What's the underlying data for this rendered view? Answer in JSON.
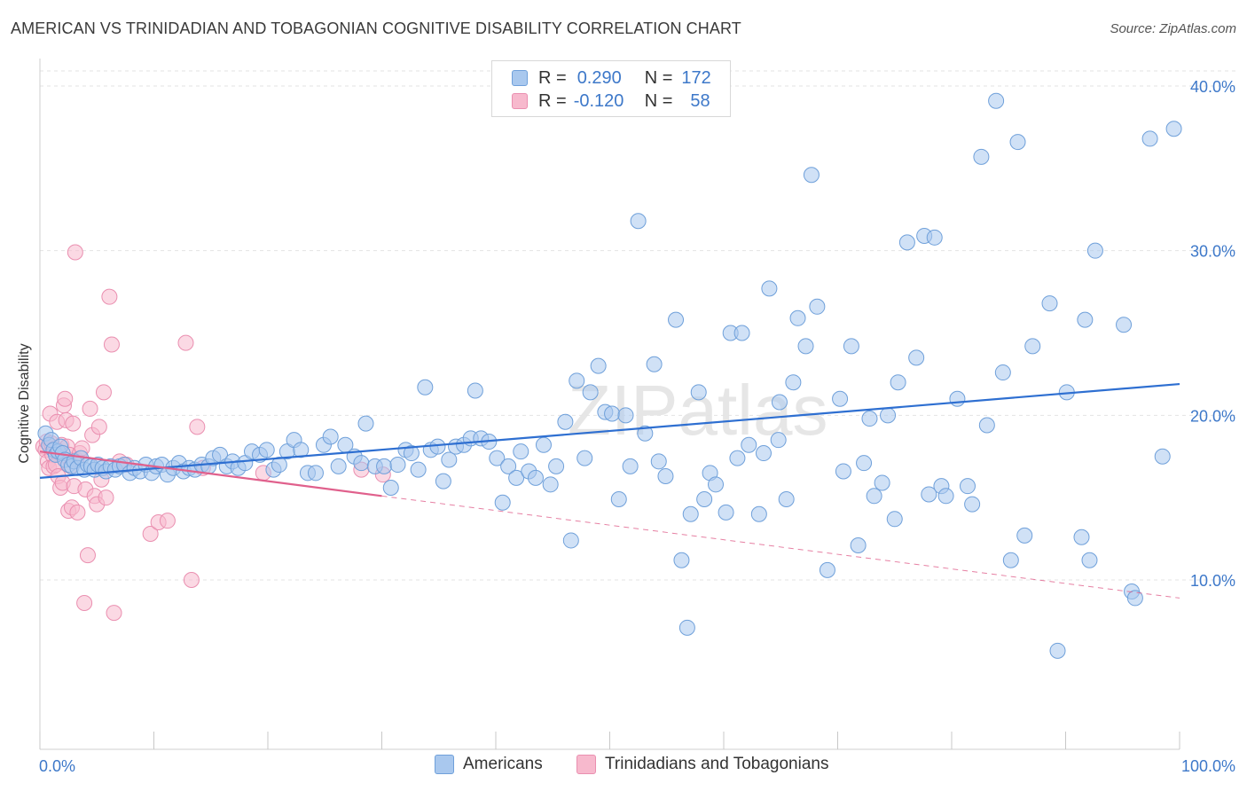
{
  "title": "AMERICAN VS TRINIDADIAN AND TOBAGONIAN COGNITIVE DISABILITY CORRELATION CHART",
  "source": "Source: ZipAtlas.com",
  "watermark": "ZIPatlas",
  "legend": {
    "row1": {
      "r_label": "R =",
      "r_value": "0.290",
      "n_label": "N =",
      "n_value": "172"
    },
    "row2": {
      "r_label": "R =",
      "r_value": "-0.120",
      "n_label": "N =",
      "n_value": "58"
    }
  },
  "colors": {
    "blue_fill": "#a9c8ee",
    "blue_stroke": "#6fa0da",
    "blue_line": "#2e6fd1",
    "pink_fill": "#f7b9cd",
    "pink_stroke": "#ea8fb0",
    "pink_line": "#e0608c",
    "label_blue": "#3d78c9",
    "grid": "#e3e3e3"
  },
  "chart_data": {
    "type": "scatter",
    "title": "AMERICAN VS TRINIDADIAN AND TOBAGONIAN COGNITIVE DISABILITY CORRELATION CHART",
    "xlabel": "",
    "ylabel": "Cognitive Disability",
    "xlim": [
      0,
      100
    ],
    "ylim": [
      0,
      42
    ],
    "x_tick_labels": [
      "0.0%",
      "100.0%"
    ],
    "y_ticks": [
      10,
      20,
      30,
      40
    ],
    "y_tick_labels": [
      "10.0%",
      "20.0%",
      "30.0%",
      "40.0%"
    ],
    "grid": true,
    "legend_position": "top-center",
    "series": [
      {
        "name": "Americans",
        "r": 0.29,
        "n": 172,
        "trend": {
          "x": [
            0,
            100
          ],
          "y": [
            16.2,
            21.9
          ]
        },
        "points": [
          [
            0.5,
            18.9
          ],
          [
            0.8,
            18.2
          ],
          [
            1.0,
            18.5
          ],
          [
            1.2,
            17.9
          ],
          [
            1.4,
            17.6
          ],
          [
            1.6,
            17.8
          ],
          [
            1.8,
            18.1
          ],
          [
            2.0,
            17.7
          ],
          [
            2.2,
            17.3
          ],
          [
            2.5,
            17.0
          ],
          [
            2.8,
            16.9
          ],
          [
            3.0,
            17.2
          ],
          [
            3.3,
            16.8
          ],
          [
            3.6,
            17.4
          ],
          [
            3.9,
            16.7
          ],
          [
            4.2,
            17.0
          ],
          [
            4.5,
            16.9
          ],
          [
            4.8,
            16.7
          ],
          [
            5.1,
            17.0
          ],
          [
            5.5,
            16.8
          ],
          [
            5.8,
            16.6
          ],
          [
            6.2,
            16.9
          ],
          [
            6.6,
            16.7
          ],
          [
            7.0,
            16.9
          ],
          [
            7.4,
            17.0
          ],
          [
            7.9,
            16.5
          ],
          [
            8.3,
            16.8
          ],
          [
            8.8,
            16.6
          ],
          [
            9.3,
            17.0
          ],
          [
            9.8,
            16.5
          ],
          [
            10.2,
            16.9
          ],
          [
            10.7,
            17.0
          ],
          [
            11.2,
            16.4
          ],
          [
            11.7,
            16.8
          ],
          [
            12.2,
            17.1
          ],
          [
            12.6,
            16.6
          ],
          [
            13.1,
            16.8
          ],
          [
            13.6,
            16.7
          ],
          [
            14.2,
            17.0
          ],
          [
            14.8,
            16.9
          ],
          [
            15.2,
            17.4
          ],
          [
            15.8,
            17.6
          ],
          [
            16.4,
            16.9
          ],
          [
            16.9,
            17.2
          ],
          [
            17.4,
            16.8
          ],
          [
            18.0,
            17.1
          ],
          [
            18.6,
            17.8
          ],
          [
            19.3,
            17.6
          ],
          [
            19.9,
            17.9
          ],
          [
            20.5,
            16.7
          ],
          [
            21.0,
            17.0
          ],
          [
            21.7,
            17.8
          ],
          [
            22.3,
            18.5
          ],
          [
            22.9,
            17.9
          ],
          [
            23.5,
            16.5
          ],
          [
            24.2,
            16.5
          ],
          [
            24.9,
            18.2
          ],
          [
            25.5,
            18.7
          ],
          [
            26.2,
            16.9
          ],
          [
            26.8,
            18.2
          ],
          [
            27.6,
            17.5
          ],
          [
            28.2,
            17.1
          ],
          [
            28.6,
            19.5
          ],
          [
            29.4,
            16.9
          ],
          [
            30.2,
            16.9
          ],
          [
            30.8,
            15.6
          ],
          [
            31.4,
            17.0
          ],
          [
            32.1,
            17.9
          ],
          [
            32.6,
            17.7
          ],
          [
            33.2,
            16.7
          ],
          [
            33.8,
            21.7
          ],
          [
            34.3,
            17.9
          ],
          [
            34.9,
            18.1
          ],
          [
            35.4,
            16.0
          ],
          [
            35.9,
            17.3
          ],
          [
            36.5,
            18.1
          ],
          [
            37.2,
            18.2
          ],
          [
            37.8,
            18.6
          ],
          [
            38.2,
            21.5
          ],
          [
            38.7,
            18.6
          ],
          [
            39.4,
            18.4
          ],
          [
            40.1,
            17.4
          ],
          [
            40.6,
            14.7
          ],
          [
            41.1,
            16.9
          ],
          [
            41.8,
            16.2
          ],
          [
            42.2,
            17.8
          ],
          [
            42.9,
            16.6
          ],
          [
            43.5,
            16.2
          ],
          [
            44.2,
            18.2
          ],
          [
            44.8,
            15.8
          ],
          [
            45.3,
            16.9
          ],
          [
            46.1,
            19.6
          ],
          [
            46.6,
            12.4
          ],
          [
            47.1,
            22.1
          ],
          [
            47.8,
            17.4
          ],
          [
            48.3,
            21.4
          ],
          [
            49.0,
            23.0
          ],
          [
            49.6,
            20.2
          ],
          [
            50.2,
            20.1
          ],
          [
            50.8,
            14.9
          ],
          [
            51.4,
            20.0
          ],
          [
            51.8,
            16.9
          ],
          [
            52.5,
            31.8
          ],
          [
            53.1,
            18.9
          ],
          [
            53.9,
            23.1
          ],
          [
            54.3,
            17.2
          ],
          [
            54.9,
            16.3
          ],
          [
            55.8,
            25.8
          ],
          [
            56.3,
            11.2
          ],
          [
            56.8,
            7.1
          ],
          [
            57.1,
            14.0
          ],
          [
            57.8,
            21.4
          ],
          [
            58.3,
            14.9
          ],
          [
            58.8,
            16.5
          ],
          [
            59.3,
            15.8
          ],
          [
            60.2,
            14.1
          ],
          [
            60.6,
            25.0
          ],
          [
            61.2,
            17.4
          ],
          [
            61.6,
            25.0
          ],
          [
            62.2,
            18.2
          ],
          [
            63.1,
            14.0
          ],
          [
            63.5,
            17.7
          ],
          [
            64.0,
            27.7
          ],
          [
            64.8,
            18.5
          ],
          [
            64.9,
            20.8
          ],
          [
            65.5,
            14.9
          ],
          [
            66.1,
            22.0
          ],
          [
            66.5,
            25.9
          ],
          [
            67.2,
            24.2
          ],
          [
            67.7,
            34.6
          ],
          [
            68.2,
            26.6
          ],
          [
            69.1,
            10.6
          ],
          [
            70.2,
            21.0
          ],
          [
            70.5,
            16.6
          ],
          [
            71.2,
            24.2
          ],
          [
            71.8,
            12.1
          ],
          [
            72.3,
            17.1
          ],
          [
            72.8,
            19.8
          ],
          [
            73.2,
            15.1
          ],
          [
            73.9,
            15.9
          ],
          [
            74.4,
            20.0
          ],
          [
            75.0,
            13.7
          ],
          [
            75.3,
            22.0
          ],
          [
            76.1,
            30.5
          ],
          [
            76.9,
            23.5
          ],
          [
            77.6,
            30.9
          ],
          [
            78.0,
            15.2
          ],
          [
            78.5,
            30.8
          ],
          [
            79.1,
            15.7
          ],
          [
            79.5,
            15.1
          ],
          [
            80.5,
            21.0
          ],
          [
            81.4,
            15.7
          ],
          [
            81.8,
            14.6
          ],
          [
            82.6,
            35.7
          ],
          [
            83.1,
            19.4
          ],
          [
            83.9,
            39.1
          ],
          [
            84.5,
            22.6
          ],
          [
            85.2,
            11.2
          ],
          [
            85.8,
            36.6
          ],
          [
            86.4,
            12.7
          ],
          [
            87.1,
            24.2
          ],
          [
            88.6,
            26.8
          ],
          [
            89.3,
            5.7
          ],
          [
            90.1,
            21.4
          ],
          [
            91.4,
            12.6
          ],
          [
            91.7,
            25.8
          ],
          [
            92.1,
            11.2
          ],
          [
            92.6,
            30.0
          ],
          [
            95.1,
            25.5
          ],
          [
            95.8,
            9.3
          ],
          [
            96.1,
            8.9
          ],
          [
            97.4,
            36.8
          ],
          [
            98.5,
            17.5
          ],
          [
            99.5,
            37.4
          ]
        ]
      },
      {
        "name": "Trinidadians and Tobagonians",
        "r": -0.12,
        "n": 58,
        "trend": {
          "x": [
            0,
            30
          ],
          "y": [
            17.8,
            15.1
          ],
          "dashed_x": [
            30,
            100
          ],
          "dashed_y": [
            15.1,
            8.9
          ]
        },
        "points": [
          [
            0.3,
            18.1
          ],
          [
            0.5,
            17.9
          ],
          [
            0.6,
            18.4
          ],
          [
            0.7,
            17.2
          ],
          [
            0.8,
            16.8
          ],
          [
            0.9,
            20.1
          ],
          [
            1.0,
            18.3
          ],
          [
            1.1,
            17.6
          ],
          [
            1.2,
            16.9
          ],
          [
            1.3,
            18.0
          ],
          [
            1.4,
            17.0
          ],
          [
            1.5,
            19.6
          ],
          [
            1.6,
            16.3
          ],
          [
            1.7,
            17.8
          ],
          [
            1.8,
            15.6
          ],
          [
            1.9,
            18.2
          ],
          [
            2.0,
            15.9
          ],
          [
            2.1,
            20.6
          ],
          [
            2.2,
            21.0
          ],
          [
            2.3,
            19.7
          ],
          [
            2.4,
            18.1
          ],
          [
            2.5,
            14.2
          ],
          [
            2.6,
            17.6
          ],
          [
            2.7,
            16.9
          ],
          [
            2.8,
            14.4
          ],
          [
            2.9,
            19.5
          ],
          [
            3.0,
            15.7
          ],
          [
            3.1,
            29.9
          ],
          [
            3.2,
            17.3
          ],
          [
            3.3,
            14.1
          ],
          [
            3.5,
            17.7
          ],
          [
            3.7,
            18.0
          ],
          [
            3.9,
            8.6
          ],
          [
            4.0,
            15.5
          ],
          [
            4.2,
            11.5
          ],
          [
            4.4,
            20.4
          ],
          [
            4.6,
            18.8
          ],
          [
            4.8,
            15.1
          ],
          [
            5.0,
            14.6
          ],
          [
            5.2,
            19.3
          ],
          [
            5.4,
            16.1
          ],
          [
            5.6,
            21.4
          ],
          [
            5.8,
            15.0
          ],
          [
            6.1,
            27.2
          ],
          [
            6.3,
            24.3
          ],
          [
            6.5,
            8.0
          ],
          [
            7.0,
            17.2
          ],
          [
            7.6,
            17.0
          ],
          [
            9.7,
            12.8
          ],
          [
            10.4,
            13.5
          ],
          [
            11.2,
            13.6
          ],
          [
            12.8,
            24.4
          ],
          [
            13.3,
            10.0
          ],
          [
            13.8,
            19.3
          ],
          [
            14.3,
            16.8
          ],
          [
            19.6,
            16.5
          ],
          [
            28.2,
            16.7
          ],
          [
            30.1,
            16.4
          ]
        ]
      }
    ]
  }
}
